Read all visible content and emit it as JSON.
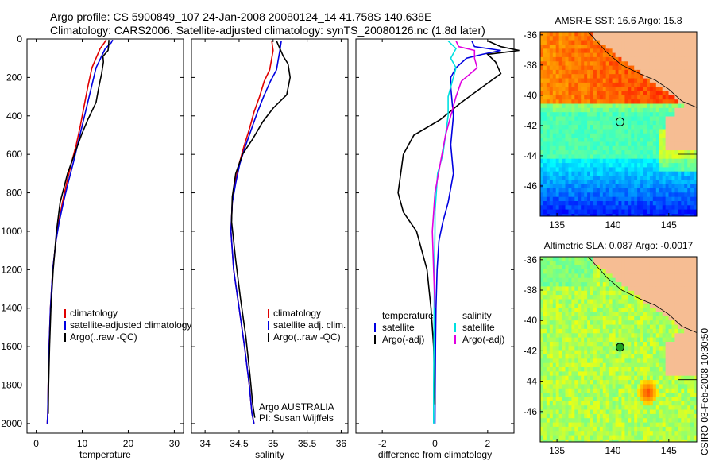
{
  "header": {
    "line1": "Argo profile: CS 5900849_107 24-Jan-2008 20080124_14 41.758S 140.638E",
    "line2": "Climatology: CARS2006. Satellite-adjusted climatology: synTS_20080126.nc (1.8d later)"
  },
  "credit": "CSIRO 03-Feb-2008 10:30:50",
  "colors": {
    "climatology": "#e00000",
    "satellite": "#0000e0",
    "argo": "#000000",
    "sat_salinity": "#00e0e0",
    "argo_salinity": "#e000e0"
  },
  "chart_data": [
    {
      "type": "line",
      "id": "temperature",
      "xlabel": "temperature",
      "ylabel": "",
      "xlim": [
        -2,
        32
      ],
      "ylim": [
        0,
        2050
      ],
      "y_reversed": true,
      "xticks": [
        0,
        10,
        20,
        30
      ],
      "yticks": [
        0,
        200,
        400,
        600,
        800,
        1000,
        1200,
        1400,
        1600,
        1800,
        2000
      ],
      "legend": [
        "climatology",
        "satellite-adjusted climatology",
        "Argo(..raw -QC)"
      ],
      "series": [
        {
          "name": "climatology",
          "color_key": "climatology",
          "x": [
            15.2,
            14.8,
            13.9,
            13.0,
            12.1,
            11.2,
            10.4,
            9.6,
            8.7,
            7.6,
            6.6,
            5.7,
            4.9,
            4.3,
            3.6,
            3.1,
            2.8,
            2.6,
            2.5,
            2.4
          ],
          "y": [
            5,
            20,
            50,
            100,
            150,
            250,
            350,
            450,
            550,
            650,
            750,
            850,
            950,
            1050,
            1200,
            1400,
            1600,
            1800,
            1950,
            2000
          ]
        },
        {
          "name": "satellite-adjusted climatology",
          "color_key": "satellite",
          "x": [
            16.6,
            16.3,
            15.0,
            14.0,
            13.0,
            12.0,
            11.0,
            10.0,
            9.0,
            8.0,
            6.9,
            5.9,
            5.0,
            4.3,
            3.6,
            3.1,
            2.8,
            2.6,
            2.5,
            2.4
          ],
          "y": [
            5,
            20,
            50,
            100,
            150,
            250,
            350,
            450,
            550,
            650,
            750,
            850,
            950,
            1050,
            1200,
            1400,
            1600,
            1800,
            1950,
            2000
          ]
        },
        {
          "name": "Argo(..raw -QC)",
          "color_key": "argo",
          "x": [
            15.8,
            15.7,
            15.6,
            14.5,
            14.6,
            14.2,
            13.6,
            13.0,
            11.2,
            9.8,
            8.3,
            6.8,
            5.2,
            4.4,
            3.7,
            3.2,
            2.9,
            2.7,
            2.6
          ],
          "y": [
            5,
            40,
            60,
            90,
            120,
            180,
            250,
            330,
            420,
            500,
            600,
            700,
            850,
            1000,
            1200,
            1400,
            1600,
            1800,
            1950
          ]
        }
      ]
    },
    {
      "type": "line",
      "id": "salinity",
      "xlabel": "salinity",
      "xlim": [
        33.8,
        36.1
      ],
      "ylim": [
        0,
        2050
      ],
      "y_reversed": true,
      "xticks": [
        34,
        34.5,
        35,
        35.5,
        36
      ],
      "legend": [
        "climatology",
        "satellite adj. clim.",
        "Argo(..raw -QC)"
      ],
      "annotations": [
        "Argo AUSTRALIA",
        "PI: Susan Wijffels"
      ],
      "series": [
        {
          "name": "climatology",
          "color_key": "climatology",
          "x": [
            34.98,
            35.0,
            34.98,
            34.95,
            34.87,
            34.8,
            34.72,
            34.65,
            34.57,
            34.5,
            34.44,
            34.4,
            34.38,
            34.42,
            34.5,
            34.58,
            34.65,
            34.69,
            34.72
          ],
          "y": [
            10,
            60,
            100,
            160,
            220,
            300,
            380,
            470,
            560,
            650,
            750,
            850,
            1000,
            1200,
            1400,
            1600,
            1800,
            1950,
            2000
          ]
        },
        {
          "name": "satellite adj. clim.",
          "color_key": "satellite",
          "x": [
            35.12,
            35.1,
            35.08,
            35.05,
            34.96,
            34.86,
            34.77,
            34.68,
            34.59,
            34.51,
            34.45,
            34.4,
            34.38,
            34.42,
            34.5,
            34.58,
            34.65,
            34.69,
            34.72
          ],
          "y": [
            10,
            60,
            100,
            160,
            220,
            300,
            380,
            470,
            560,
            650,
            750,
            850,
            1000,
            1200,
            1400,
            1600,
            1800,
            1950,
            2000
          ]
        },
        {
          "name": "Argo(..raw -QC)",
          "color_key": "argo",
          "x": [
            35.05,
            35.1,
            35.15,
            35.22,
            35.25,
            35.2,
            35.0,
            34.85,
            34.7,
            34.55,
            34.45,
            34.4,
            34.39,
            34.45,
            34.52,
            34.6,
            34.66,
            34.7,
            34.73
          ],
          "y": [
            10,
            50,
            90,
            130,
            200,
            290,
            360,
            430,
            520,
            600,
            700,
            820,
            950,
            1150,
            1350,
            1550,
            1750,
            1900,
            1970
          ]
        }
      ]
    },
    {
      "type": "line",
      "id": "difference",
      "xlabel": "difference from climatology",
      "xlim": [
        -3,
        3
      ],
      "ylim": [
        0,
        2050
      ],
      "y_reversed": true,
      "xticks": [
        -2,
        0,
        2
      ],
      "zero_line": true,
      "legend_titles": [
        "temperature",
        "salinity"
      ],
      "legend": [
        "satellite",
        "Argo(-adj)",
        "satellite",
        "Argo(-adj)"
      ],
      "series": [
        {
          "name": "satellite",
          "group": "temperature",
          "color_key": "satellite",
          "x": [
            1.4,
            1.5,
            2.5,
            1.8,
            1.2,
            0.8,
            0.6,
            0.6,
            0.7,
            0.6,
            0.7,
            0.5,
            0.3,
            0.15,
            0.08,
            0.04,
            0.02,
            0.01,
            0.0
          ],
          "y": [
            10,
            40,
            60,
            80,
            100,
            150,
            200,
            250,
            400,
            550,
            700,
            850,
            950,
            1050,
            1200,
            1400,
            1600,
            1800,
            2000
          ]
        },
        {
          "name": "Argo(-adj)",
          "group": "temperature",
          "color_key": "argo",
          "x": [
            2.0,
            2.5,
            3.2,
            2.0,
            2.3,
            2.5,
            1.8,
            1.0,
            0.2,
            -0.8,
            -1.2,
            -1.4,
            -1.2,
            -0.7,
            -0.3,
            -0.15,
            -0.05,
            0.0
          ],
          "y": [
            10,
            40,
            60,
            80,
            120,
            180,
            250,
            330,
            420,
            500,
            600,
            800,
            900,
            1000,
            1200,
            1400,
            1600,
            1900
          ]
        },
        {
          "name": "satellite",
          "group": "salinity",
          "color_key": "sat_salinity",
          "x": [
            0.5,
            0.8,
            0.6,
            0.8,
            0.7,
            0.5,
            0.5,
            0.4,
            0.3,
            0.1,
            0.05,
            0.0,
            0.0,
            -0.02,
            -0.03,
            -0.04,
            -0.05,
            -0.05
          ],
          "y": [
            10,
            50,
            100,
            150,
            200,
            300,
            400,
            500,
            600,
            700,
            800,
            900,
            1000,
            1200,
            1400,
            1600,
            1800,
            2000
          ]
        },
        {
          "name": "Argo(-adj)",
          "group": "salinity",
          "color_key": "argo_salinity",
          "x": [
            0.8,
            0.9,
            1.5,
            1.5,
            1.6,
            1.0,
            0.8,
            0.6,
            0.4,
            0.2,
            0.0,
            -0.1,
            -0.05,
            0.0
          ],
          "y": [
            10,
            40,
            60,
            100,
            150,
            220,
            300,
            400,
            500,
            650,
            800,
            1000,
            1200,
            1400
          ]
        }
      ]
    },
    {
      "type": "heatmap",
      "id": "sst-map",
      "title": "AMSR-E SST: 16.6 Argo: 15.8",
      "xlim": [
        133.5,
        147.5
      ],
      "ylim": [
        -48,
        -35.8
      ],
      "xticks": [
        135,
        140,
        145
      ],
      "yticks": [
        -36,
        -38,
        -40,
        -42,
        -44,
        -46
      ],
      "marker": {
        "lon": 140.638,
        "lat": -41.758
      }
    },
    {
      "type": "heatmap",
      "id": "sla-map",
      "title": "Altimetric SLA: 0.087 Argo: -0.0017",
      "xlim": [
        133.5,
        147.5
      ],
      "ylim": [
        -48,
        -35.8
      ],
      "xticks": [
        135,
        140,
        145
      ],
      "yticks": [
        -36,
        -38,
        -40,
        -42,
        -44,
        -46
      ],
      "marker": {
        "lon": 140.638,
        "lat": -41.758
      }
    }
  ]
}
